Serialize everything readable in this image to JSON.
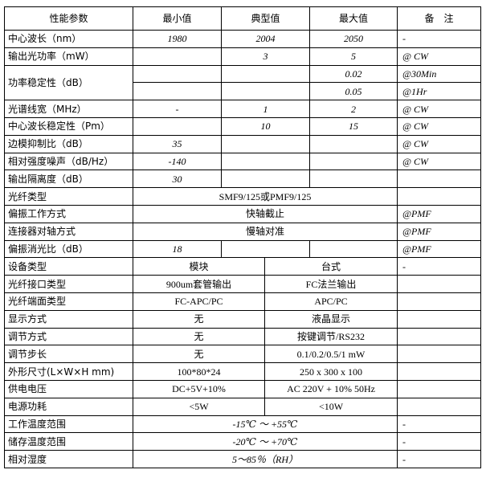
{
  "header": {
    "param": "性能参数",
    "min": "最小值",
    "typ": "典型值",
    "max": "最大值",
    "note": "备　注"
  },
  "rows": {
    "center_wl": {
      "label": "中心波长（nm）",
      "min": "1980",
      "typ": "2004",
      "max": "2050",
      "note": "-"
    },
    "out_power": {
      "label": "输出光功率（mW）",
      "min": "",
      "typ": "3",
      "max": "5",
      "note": "@ CW"
    },
    "power_stab": {
      "label": "功率稳定性（dB）",
      "max1": "0.02",
      "note1": "@30Min",
      "max2": "0.05",
      "note2": "@1Hr"
    },
    "linewidth": {
      "label": "光谱线宽（MHz）",
      "min": "-",
      "typ": "1",
      "max": "2",
      "note": "@ CW"
    },
    "wl_stab": {
      "label": "中心波长稳定性（Pm）",
      "min": "",
      "typ": "10",
      "max": "15",
      "note": "@ CW"
    },
    "smsr": {
      "label": "边模抑制比（dB）",
      "min": "35",
      "note": "@ CW"
    },
    "rin": {
      "label": "相对强度噪声（dB/Hz）",
      "min": "-140",
      "note": "@ CW"
    },
    "isolation": {
      "label": "输出隔离度（dB）",
      "min": "30",
      "note": ""
    },
    "fiber_type": {
      "label": "光纤类型",
      "value": "SMF9/125或PMF9/125",
      "note": ""
    },
    "pol_mode": {
      "label": "偏振工作方式",
      "value": "快轴截止",
      "note": "@PMF"
    },
    "conn_align": {
      "label": "连接器对轴方式",
      "value": "慢轴对准",
      "note": "@PMF"
    },
    "per": {
      "label": "偏振消光比（dB）",
      "min": "18",
      "note": "@PMF"
    },
    "device_type": {
      "label": "设备类型",
      "module": "模块",
      "bench": "台式",
      "note": "-"
    },
    "fiber_if": {
      "label": "光纤接口类型",
      "module": "900um套管输出",
      "bench": "FC法兰输出",
      "note": ""
    },
    "fiber_end": {
      "label": "光纤端面类型",
      "module": "FC-APC/PC",
      "bench": "APC/PC",
      "note": ""
    },
    "display": {
      "label": "显示方式",
      "module": "无",
      "bench": "液晶显示",
      "note": ""
    },
    "adjust": {
      "label": "调节方式",
      "module": "无",
      "bench": "按键调节/RS232",
      "note": ""
    },
    "step": {
      "label": "调节步长",
      "module": "无",
      "bench": "0.1/0.2/0.5/1 mW",
      "note": ""
    },
    "size": {
      "label": "外形尺寸(L×W×H mm)",
      "module": "100*80*24",
      "bench": "250 x 300 x 100",
      "note": ""
    },
    "supply": {
      "label": "供电电压",
      "module": "DC+5V+10%",
      "bench": "AC 220V + 10% 50Hz",
      "note": ""
    },
    "consumption": {
      "label": "电源功耗",
      "module": "<5W",
      "bench": "<10W",
      "note": ""
    },
    "op_temp": {
      "label": "工作温度范围",
      "value": "-15℃ ～ +55℃",
      "note": "-"
    },
    "st_temp": {
      "label": "储存温度范围",
      "value": "-20℃ ～ +70℃",
      "note": "-"
    },
    "humidity": {
      "label": "相对湿度",
      "value": "5～85％（RH）",
      "note": "-"
    }
  }
}
